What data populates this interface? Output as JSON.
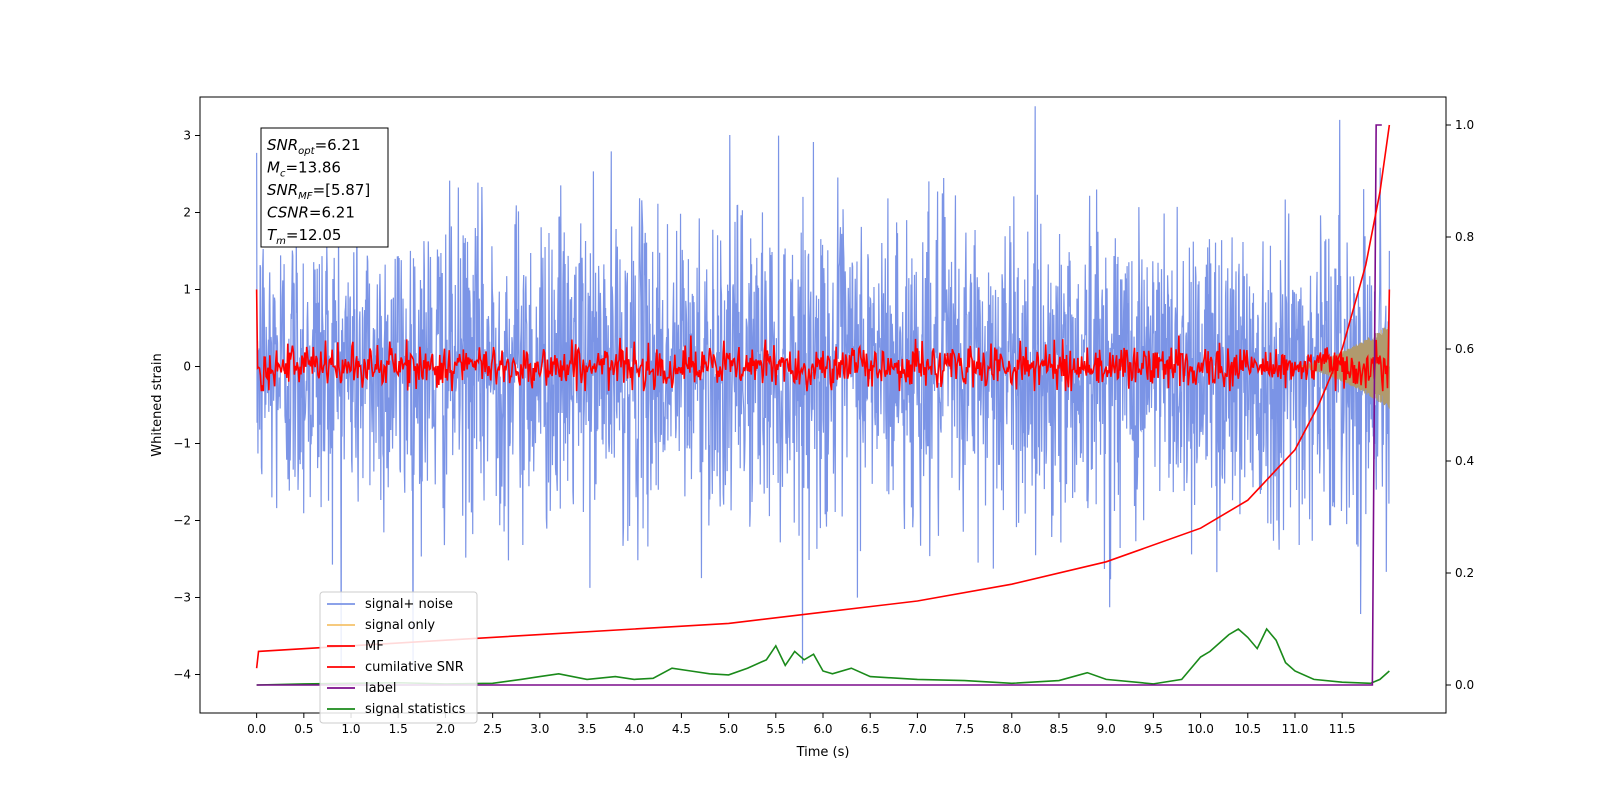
{
  "chart_data": {
    "type": "line",
    "xlabel": "Time (s)",
    "ylabel": "Whitened strain",
    "xlim": [
      -0.6,
      12.6
    ],
    "ylim": [
      -4.5,
      3.5
    ],
    "y2lim": [
      -0.05,
      1.05
    ],
    "xticks": [
      "0.0",
      "0.5",
      "1.0",
      "1.5",
      "2.0",
      "2.5",
      "3.0",
      "3.5",
      "4.0",
      "4.5",
      "5.0",
      "5.5",
      "6.0",
      "6.5",
      "7.0",
      "7.5",
      "8.0",
      "8.5",
      "9.0",
      "9.5",
      "10.0",
      "10.5",
      "11.0",
      "11.5"
    ],
    "yticks": [
      "3",
      "2",
      "1",
      "0",
      "−1",
      "−2",
      "−3",
      "−4"
    ],
    "y2ticks": [
      "1.0",
      "0.8",
      "0.6",
      "0.4",
      "0.2",
      "0.0"
    ],
    "grid": false,
    "legend_position": "lower-left",
    "annotation": {
      "lines": [
        {
          "pre": "SNR",
          "sub": "opt",
          "post": "=6.21"
        },
        {
          "pre": "M",
          "sub": "c",
          "post": "=13.86"
        },
        {
          "pre": "SNR",
          "sub": "MF",
          "post": "=[5.87]"
        },
        {
          "pre": "CSNR",
          "sub": "",
          "post": "=6.21"
        },
        {
          "pre": "T",
          "sub": "m",
          "post": "=12.05"
        }
      ]
    },
    "series": [
      {
        "name": "signal+ noise",
        "color": "#7b94e6",
        "axis": "left",
        "description": "whitened strain noise, std ~1.0, range about -3.9 to 3.4 over 0-12.0 s"
      },
      {
        "name": "signal only",
        "color": "#f5c26b",
        "axis": "left",
        "description": "chirp growing from ~0 near 11.0 s to about ±0.5 at 12.0 s"
      },
      {
        "name": "MF",
        "color": "#ff0000",
        "axis": "left",
        "description": "matched-filter output, std ~0.15 around 0, starts at 1.0"
      },
      {
        "name": "cumilative SNR",
        "color": "#ff0000",
        "axis": "right",
        "x": [
          0.0,
          0.02,
          1.0,
          2.0,
          3.0,
          4.0,
          5.0,
          6.0,
          7.0,
          8.0,
          9.0,
          10.0,
          10.5,
          11.0,
          11.25,
          11.5,
          11.75,
          11.9,
          12.0
        ],
        "y": [
          0.03,
          0.06,
          0.07,
          0.08,
          0.09,
          0.1,
          0.11,
          0.13,
          0.15,
          0.18,
          0.22,
          0.28,
          0.33,
          0.42,
          0.5,
          0.6,
          0.75,
          0.88,
          1.0
        ]
      },
      {
        "name": "label",
        "color": "#7b0c8c",
        "axis": "right",
        "x": [
          0.0,
          11.82,
          11.86,
          11.92
        ],
        "y": [
          0.0,
          0.0,
          1.0,
          1.0
        ]
      },
      {
        "name": "signal statistics",
        "color": "#1a8a1a",
        "axis": "right",
        "x": [
          0.0,
          0.5,
          1.0,
          1.5,
          2.0,
          2.5,
          2.8,
          3.0,
          3.2,
          3.5,
          3.8,
          4.0,
          4.2,
          4.4,
          4.6,
          4.8,
          5.0,
          5.2,
          5.4,
          5.5,
          5.6,
          5.7,
          5.8,
          5.9,
          6.0,
          6.1,
          6.3,
          6.5,
          7.0,
          7.5,
          8.0,
          8.5,
          8.8,
          9.0,
          9.5,
          9.8,
          10.0,
          10.1,
          10.3,
          10.4,
          10.5,
          10.6,
          10.7,
          10.8,
          10.9,
          11.0,
          11.2,
          11.5,
          11.8,
          11.9,
          12.0
        ],
        "y": [
          0.0,
          0.002,
          0.003,
          0.004,
          0.002,
          0.003,
          0.01,
          0.015,
          0.02,
          0.01,
          0.015,
          0.01,
          0.012,
          0.03,
          0.025,
          0.02,
          0.018,
          0.03,
          0.045,
          0.07,
          0.035,
          0.06,
          0.045,
          0.055,
          0.025,
          0.02,
          0.03,
          0.015,
          0.01,
          0.008,
          0.003,
          0.008,
          0.022,
          0.01,
          0.002,
          0.01,
          0.05,
          0.06,
          0.09,
          0.1,
          0.085,
          0.065,
          0.1,
          0.08,
          0.04,
          0.025,
          0.01,
          0.005,
          0.003,
          0.01,
          0.025
        ]
      }
    ]
  }
}
